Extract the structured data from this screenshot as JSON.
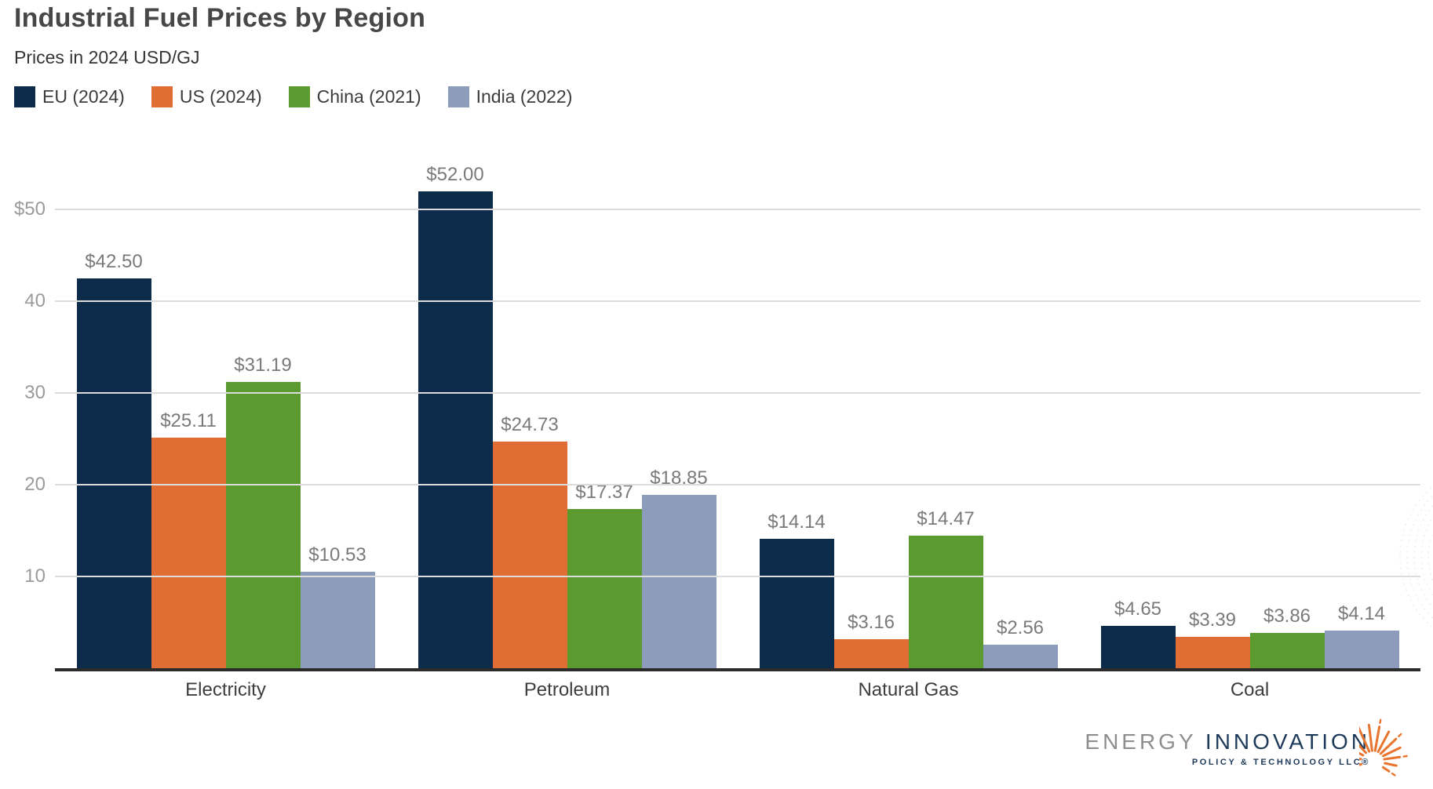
{
  "header": {
    "title": "Industrial Fuel Prices by Region",
    "subtitle": "Prices in 2024 USD/GJ"
  },
  "chart_data": {
    "type": "bar",
    "title": "Industrial Fuel Prices by Region",
    "subtitle": "Prices in 2024 USD/GJ",
    "unit": "2024 USD/GJ",
    "value_prefix": "$",
    "categories": [
      "Electricity",
      "Petroleum",
      "Natural Gas",
      "Coal"
    ],
    "series": [
      {
        "name": "EU (2024)",
        "color": "#0d2b4b",
        "values": [
          42.5,
          52.0,
          14.14,
          4.65
        ],
        "labels": [
          "$42.50",
          "$52.00",
          "$14.14",
          "$4.65"
        ]
      },
      {
        "name": "US (2024)",
        "color": "#e06d33",
        "values": [
          25.11,
          24.73,
          3.16,
          3.39
        ],
        "labels": [
          "$25.11",
          "$24.73",
          "$3.16",
          "$3.39"
        ]
      },
      {
        "name": "China (2021)",
        "color": "#5a9a2e",
        "values": [
          31.19,
          17.37,
          14.47,
          3.86
        ],
        "labels": [
          "$31.19",
          "$17.37",
          "$14.47",
          "$3.86"
        ]
      },
      {
        "name": "India (2022)",
        "color": "#8c9cba",
        "values": [
          10.53,
          18.85,
          2.56,
          4.14
        ],
        "labels": [
          "$10.53",
          "$18.85",
          "$2.56",
          "$4.14"
        ]
      }
    ],
    "yticks": [
      {
        "value": 50,
        "label": "$50"
      },
      {
        "value": 40,
        "label": "40"
      },
      {
        "value": 30,
        "label": "30"
      },
      {
        "value": 20,
        "label": "20"
      },
      {
        "value": 10,
        "label": "10"
      }
    ],
    "ylim": [
      0,
      58.3
    ],
    "grid": true,
    "legend_position": "top-left"
  },
  "logo": {
    "brand_primary": "ENERGY",
    "brand_secondary": "INNOVATION",
    "tagline": "POLICY & TECHNOLOGY LLC®",
    "colors": {
      "primary": "#8e8e8e",
      "secondary": "#1d3a5a",
      "sunburst": "#e8742e"
    }
  },
  "colors": {
    "gridline": "#dcdcdc",
    "axis": "#2b2b2b",
    "tick_label": "#9b9b9b",
    "data_label": "#7a7a7a",
    "category_label": "#3d3d3d",
    "title": "#474747",
    "subtitle": "#343434"
  }
}
